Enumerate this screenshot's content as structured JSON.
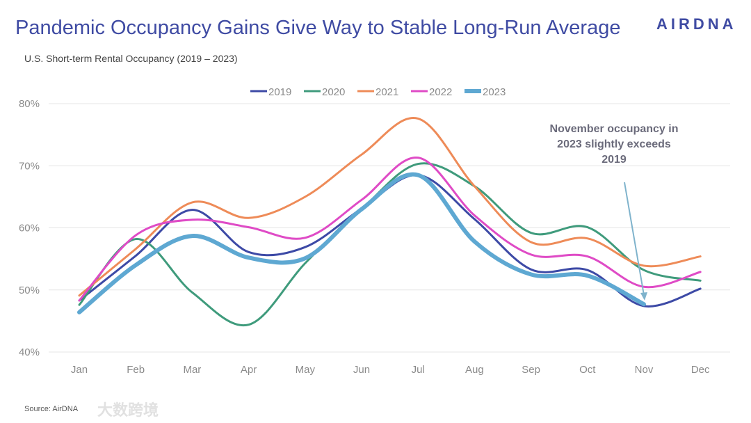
{
  "header": {
    "title": "Pandemic Occupancy Gains Give Way to Stable Long-Run Average",
    "subtitle": "U.S. Short-term Rental Occupancy (2019 – 2023)",
    "logo": "AIRDNA"
  },
  "footer": {
    "source": "Source: AirDNA",
    "watermark": "大数跨境"
  },
  "chart_data": {
    "type": "line",
    "title": "U.S. Short-term Rental Occupancy (2019 – 2023)",
    "xlabel": "",
    "ylabel": "",
    "categories": [
      "Jan",
      "Feb",
      "Mar",
      "Apr",
      "May",
      "Jun",
      "Jul",
      "Aug",
      "Sep",
      "Oct",
      "Nov",
      "Dec"
    ],
    "ylim": [
      40,
      80
    ],
    "yticks": [
      40,
      50,
      60,
      70,
      80
    ],
    "ytick_labels": [
      "40%",
      "50%",
      "60%",
      "70%",
      "80%"
    ],
    "grid": true,
    "legend_placement": "top-center",
    "series": [
      {
        "name": "2019",
        "color": "#3d4aa6",
        "values": [
          48.3,
          55.5,
          62.9,
          56.1,
          56.9,
          63.1,
          68.5,
          61.4,
          53.3,
          53.2,
          47.4,
          50.2
        ]
      },
      {
        "name": "2020",
        "color": "#3f9b7c",
        "values": [
          47.6,
          58.2,
          49.6,
          44.4,
          54.3,
          63.0,
          70.3,
          66.7,
          59.2,
          60.1,
          53.2,
          51.5
        ]
      },
      {
        "name": "2021",
        "color": "#ee8b58",
        "values": [
          49.1,
          56.6,
          64.1,
          61.6,
          65.0,
          71.8,
          77.6,
          66.7,
          57.7,
          58.3,
          53.9,
          55.4
        ]
      },
      {
        "name": "2022",
        "color": "#df4bc6",
        "values": [
          48.3,
          58.8,
          61.3,
          60.1,
          58.4,
          64.5,
          71.3,
          62.0,
          55.7,
          55.4,
          50.5,
          52.9
        ]
      },
      {
        "name": "2023",
        "color": "#5ea8d2",
        "values": [
          46.4,
          54.0,
          58.7,
          55.2,
          55.1,
          63.0,
          68.5,
          57.8,
          52.5,
          52.3,
          47.7,
          null
        ]
      }
    ],
    "annotations": [
      {
        "lines": [
          "November occupancy in",
          "2023 slightly exceeds",
          "2019"
        ],
        "target_category": "Nov",
        "target_value": 47.7
      }
    ]
  }
}
